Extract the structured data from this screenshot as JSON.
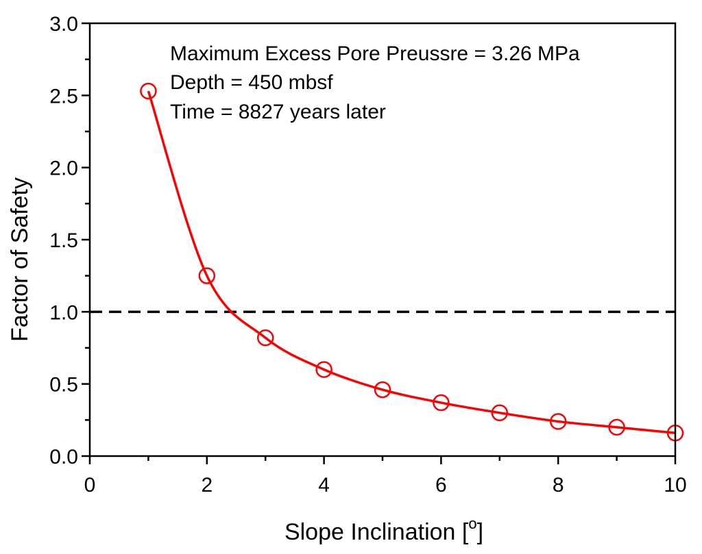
{
  "chart_data": {
    "type": "line",
    "xlabel": "Slope Inclination [",
    "xlabel_superscript": "o",
    "xlabel_suffix": "]",
    "ylabel": "Factor of Safety",
    "xlim": [
      0,
      10
    ],
    "ylim": [
      0.0,
      3.0
    ],
    "x_ticks": [
      "0",
      "2",
      "4",
      "6",
      "8",
      "10"
    ],
    "y_ticks": [
      "0.0",
      "0.5",
      "1.0",
      "1.5",
      "2.0",
      "2.5",
      "3.0"
    ],
    "series": [
      {
        "name": "Factor of Safety",
        "color": "#ff0000",
        "marker": "open-circle",
        "x": [
          1,
          2,
          3,
          4,
          5,
          6,
          7,
          8,
          9,
          10
        ],
        "y": [
          2.53,
          1.25,
          0.82,
          0.6,
          0.46,
          0.37,
          0.3,
          0.24,
          0.2,
          0.16
        ]
      }
    ],
    "reference_line": {
      "y": 1.0,
      "style": "dashed",
      "color": "#000000"
    },
    "annotations": [
      "Maximum Excess Pore Preussre = 3.26 MPa",
      "Depth = 450 mbsf",
      "Time = 8827 years later"
    ]
  }
}
